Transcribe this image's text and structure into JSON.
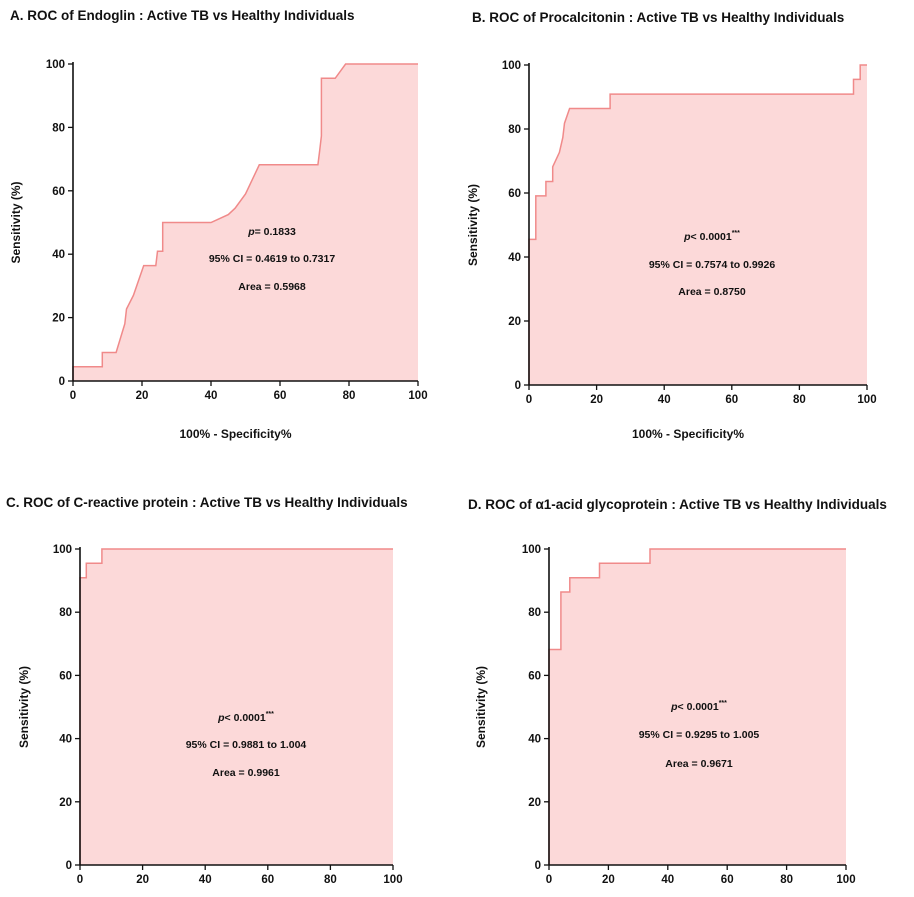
{
  "chart_data": [
    {
      "id": "A",
      "type": "area",
      "title": "A.   ROC of Endoglin : Active TB vs Healthy Individuals",
      "xlabel": "100% - Specificity%",
      "ylabel": "Sensitivity (%)",
      "xlim": [
        0,
        100
      ],
      "ylim": [
        0,
        100
      ],
      "xticks": [
        0,
        20,
        40,
        60,
        80,
        100
      ],
      "yticks": [
        0,
        20,
        40,
        60,
        80,
        100
      ],
      "annotations": {
        "p_label": "p",
        "p_value": "= 0.1833",
        "p_stars": "",
        "ci": "95% CI = 0.4619 to 0.7317",
        "area": "Area = 0.5968"
      },
      "fill_color": "#fcd9d9",
      "line_color": "#f08a8a",
      "x": [
        0,
        0,
        8.5,
        8.5,
        12.5,
        15,
        15.5,
        17.5,
        20.5,
        24,
        24.5,
        26,
        26,
        40,
        45,
        47,
        50,
        54,
        59,
        71,
        71.5,
        72,
        72,
        76,
        79,
        100
      ],
      "y": [
        0,
        4.5,
        4.5,
        9,
        9,
        18,
        22.7,
        27,
        36.4,
        36.4,
        40.9,
        40.9,
        50,
        50,
        52.5,
        54.5,
        59,
        68.2,
        68.2,
        68.2,
        72.7,
        77.3,
        95.5,
        95.5,
        100,
        100
      ]
    },
    {
      "id": "B",
      "type": "area",
      "title": "B. ROC of Procalcitonin : Active TB vs Healthy Individuals",
      "xlabel": "100% - Specificity%",
      "ylabel": "Sensitivity (%)",
      "xlim": [
        0,
        100
      ],
      "ylim": [
        0,
        100
      ],
      "xticks": [
        0,
        20,
        40,
        60,
        80,
        100
      ],
      "yticks": [
        0,
        20,
        40,
        60,
        80,
        100
      ],
      "annotations": {
        "p_label": "p",
        "p_value": "< 0.0001",
        "p_stars": "***",
        "ci": "95% CI = 0.7574 to 0.9926",
        "area": "Area = 0.8750"
      },
      "fill_color": "#fcd9d9",
      "line_color": "#f08a8a",
      "x": [
        0,
        0,
        2,
        2,
        5,
        5,
        7,
        7,
        9,
        10,
        10.5,
        12,
        24,
        24,
        96,
        96,
        98,
        98,
        100
      ],
      "y": [
        0,
        45.5,
        45.5,
        59.1,
        59.1,
        63.6,
        63.6,
        68.2,
        72.7,
        77.3,
        81.8,
        86.4,
        86.4,
        90.9,
        90.9,
        95.5,
        95.5,
        100,
        100
      ]
    },
    {
      "id": "C",
      "type": "area",
      "title": "C. ROC of C-reactive protein : Active TB vs Healthy Individuals",
      "xlabel": "",
      "ylabel": "Sensitivity (%)",
      "xlim": [
        0,
        100
      ],
      "ylim": [
        0,
        100
      ],
      "xticks": [
        0,
        20,
        40,
        60,
        80,
        100
      ],
      "yticks": [
        0,
        20,
        40,
        60,
        80,
        100
      ],
      "annotations": {
        "p_label": "p",
        "p_value": "< 0.0001",
        "p_stars": "***",
        "ci": "95% CI = 0.9881 to 1.004",
        "area": "Area = 0.9961"
      },
      "fill_color": "#fcd9d9",
      "line_color": "#f08a8a",
      "x": [
        0,
        0,
        2,
        2,
        7,
        7,
        100
      ],
      "y": [
        0,
        90.9,
        90.9,
        95.5,
        95.5,
        100,
        100
      ]
    },
    {
      "id": "D",
      "type": "area",
      "title": "D. ROC of α1-acid glycoprotein : Active TB vs Healthy Individuals",
      "xlabel": "",
      "ylabel": "Sensitivity (%)",
      "xlim": [
        0,
        100
      ],
      "ylim": [
        0,
        100
      ],
      "xticks": [
        0,
        20,
        40,
        60,
        80,
        100
      ],
      "yticks": [
        0,
        20,
        40,
        60,
        80,
        100
      ],
      "annotations": {
        "p_label": "p",
        "p_value": "< 0.0001",
        "p_stars": "***",
        "ci": "95% CI = 0.9295 to 1.005",
        "area": "Area = 0.9671"
      },
      "fill_color": "#fcd9d9",
      "line_color": "#f08a8a",
      "x": [
        0,
        0,
        4,
        4,
        7,
        7,
        17,
        17,
        34,
        34,
        100
      ],
      "y": [
        0,
        68.2,
        68.2,
        86.4,
        86.4,
        90.9,
        90.9,
        95.5,
        95.5,
        100,
        100
      ]
    }
  ]
}
